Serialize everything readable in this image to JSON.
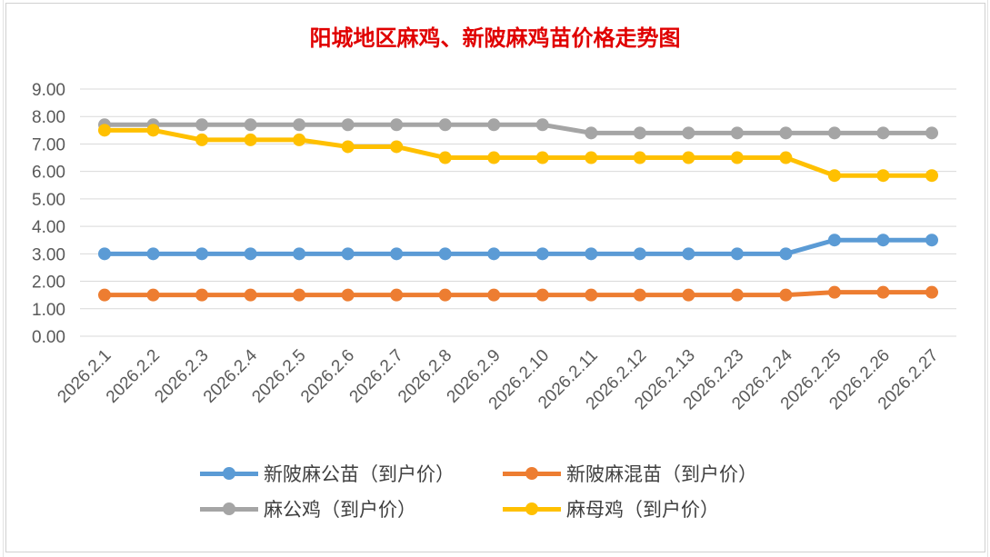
{
  "chart_data": {
    "type": "line",
    "title": "阳城地区麻鸡、新陂麻鸡苗价格走势图",
    "xlabel": "",
    "ylabel": "",
    "ylim": [
      0,
      9
    ],
    "ytick_labels": [
      "0.00",
      "1.00",
      "2.00",
      "3.00",
      "4.00",
      "5.00",
      "6.00",
      "7.00",
      "8.00",
      "9.00"
    ],
    "grid": true,
    "legend_position": "bottom",
    "categories": [
      "2026.2.1",
      "2026.2.2",
      "2026.2.3",
      "2026.2.4",
      "2026.2.5",
      "2026.2.6",
      "2026.2.7",
      "2026.2.8",
      "2026.2.9",
      "2026.2.10",
      "2026.2.11",
      "2026.2.12",
      "2026.2.13",
      "2026.2.23",
      "2026.2.24",
      "2026.2.25",
      "2026.2.26",
      "2026.2.27"
    ],
    "series": [
      {
        "name": "新陂麻公苗（到户价）",
        "color": "#5b9bd5",
        "values": [
          3.0,
          3.0,
          3.0,
          3.0,
          3.0,
          3.0,
          3.0,
          3.0,
          3.0,
          3.0,
          3.0,
          3.0,
          3.0,
          3.0,
          3.0,
          3.5,
          3.5,
          3.5
        ]
      },
      {
        "name": "新陂麻混苗（到户价）",
        "color": "#ed7d31",
        "values": [
          1.5,
          1.5,
          1.5,
          1.5,
          1.5,
          1.5,
          1.5,
          1.5,
          1.5,
          1.5,
          1.5,
          1.5,
          1.5,
          1.5,
          1.5,
          1.6,
          1.6,
          1.6
        ]
      },
      {
        "name": "麻公鸡（到户价）",
        "color": "#a5a5a5",
        "values": [
          7.7,
          7.7,
          7.7,
          7.7,
          7.7,
          7.7,
          7.7,
          7.7,
          7.7,
          7.7,
          7.4,
          7.4,
          7.4,
          7.4,
          7.4,
          7.4,
          7.4,
          7.4
        ]
      },
      {
        "name": "麻母鸡（到户价）",
        "color": "#ffc000",
        "values": [
          7.5,
          7.5,
          7.15,
          7.15,
          7.15,
          6.9,
          6.9,
          6.5,
          6.5,
          6.5,
          6.5,
          6.5,
          6.5,
          6.5,
          6.5,
          5.85,
          5.85,
          5.85
        ]
      }
    ]
  }
}
